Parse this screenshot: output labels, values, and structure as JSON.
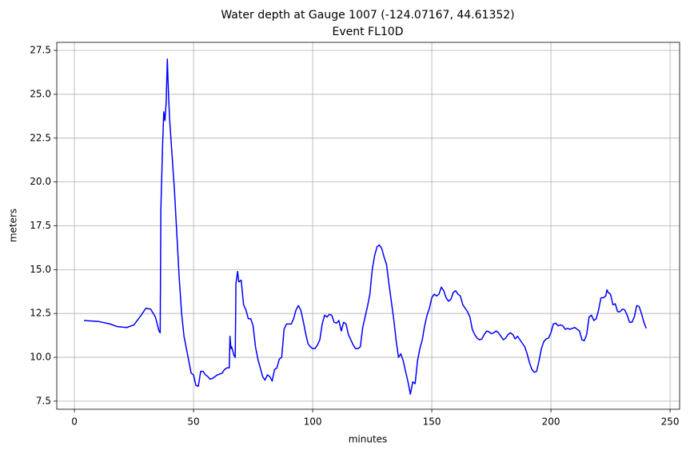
{
  "chart_data": {
    "type": "line",
    "title": "Water depth at Gauge 1007 (-124.07167, 44.61352)",
    "subtitle": "Event FL10D",
    "x_label": "minutes",
    "y_label": "meters",
    "color": "#0000ff",
    "grid": true,
    "xlim": [
      -7.4,
      254
    ],
    "ylim": [
      7.04,
      27.96
    ],
    "xticks": [
      0,
      50,
      100,
      150,
      200,
      250
    ],
    "yticks": [
      7.5,
      {
        "value": 10,
        "label": "10.0"
      },
      12.5,
      {
        "value": 15,
        "label": "15.0"
      },
      17.5,
      {
        "value": 20,
        "label": "20.0"
      },
      22.5,
      {
        "value": 25,
        "label": "25.0"
      },
      27.5
    ],
    "x": [
      4,
      10,
      15,
      18,
      22,
      25,
      28,
      30,
      32,
      34,
      35.5,
      36,
      36.3,
      37,
      37.5,
      38,
      38.5,
      39,
      39.5,
      40,
      41,
      42,
      43,
      44,
      45,
      46,
      47,
      48,
      49,
      50,
      51,
      52,
      53,
      54,
      55,
      56,
      57,
      58,
      60,
      62,
      63,
      64,
      65,
      65.3,
      65.7,
      66,
      67,
      67.5,
      67.8,
      68.5,
      69,
      70,
      71,
      72,
      73,
      74,
      75,
      76,
      77,
      78,
      79,
      80,
      81,
      82,
      83,
      84,
      85,
      86,
      87,
      88,
      89,
      90,
      91,
      92,
      93,
      94,
      95,
      96,
      97,
      98,
      99,
      100,
      101,
      102,
      103,
      104,
      105,
      106,
      107,
      108,
      109,
      110,
      111,
      112,
      113,
      114,
      115,
      116,
      117,
      118,
      119,
      120,
      121,
      122,
      123,
      124,
      125,
      126,
      127,
      128,
      129,
      130,
      131,
      132,
      133,
      134,
      135,
      136,
      137,
      138,
      139,
      140,
      141,
      142,
      143,
      144,
      145,
      146,
      147,
      148,
      149,
      150,
      151,
      152,
      153,
      154,
      155,
      156,
      157,
      158,
      159,
      160,
      161,
      162,
      163,
      164,
      165,
      166,
      167,
      168,
      169,
      170,
      171,
      172,
      173,
      174,
      175,
      176,
      177,
      178,
      179,
      180,
      181,
      182,
      183,
      184,
      185,
      186,
      187,
      188,
      189,
      190,
      191,
      192,
      193,
      194,
      195,
      196,
      197,
      198,
      199,
      200,
      201,
      202,
      203,
      204,
      205,
      206,
      207,
      208,
      209,
      210,
      211,
      212,
      213,
      214,
      215,
      216,
      217,
      218,
      219,
      220,
      221,
      222,
      223,
      223.5,
      224,
      225,
      226,
      227,
      228,
      229,
      230,
      231,
      232,
      233,
      234,
      235,
      236,
      237,
      238,
      239,
      240
    ],
    "values": [
      12.1,
      12.05,
      11.9,
      11.75,
      11.7,
      11.85,
      12.4,
      12.8,
      12.75,
      12.3,
      11.5,
      11.4,
      18.5,
      22,
      24,
      23.5,
      24.5,
      27,
      25,
      23.5,
      21.5,
      19.5,
      17,
      14.5,
      12.5,
      11.2,
      10.5,
      9.8,
      9.1,
      9.0,
      8.4,
      8.35,
      9.2,
      9.2,
      9.0,
      8.9,
      8.75,
      8.8,
      9.0,
      9.1,
      9.3,
      9.4,
      9.4,
      11.2,
      10.5,
      10.6,
      10.1,
      10.0,
      14.2,
      14.9,
      14.3,
      14.4,
      13.0,
      12.7,
      12.2,
      12.2,
      11.8,
      10.6,
      9.9,
      9.4,
      8.9,
      8.7,
      9.0,
      8.9,
      8.65,
      9.3,
      9.4,
      9.9,
      10.0,
      11.6,
      11.9,
      11.9,
      11.9,
      12.2,
      12.7,
      12.95,
      12.7,
      12.1,
      11.4,
      10.8,
      10.6,
      10.5,
      10.5,
      10.7,
      11.0,
      11.9,
      12.4,
      12.3,
      12.45,
      12.4,
      12.0,
      11.95,
      12.1,
      11.5,
      12.0,
      11.9,
      11.3,
      11.0,
      10.7,
      10.5,
      10.5,
      10.6,
      11.7,
      12.3,
      12.9,
      13.6,
      15.0,
      15.8,
      16.3,
      16.4,
      16.2,
      15.7,
      15.3,
      14.2,
      13.2,
      12.2,
      11.0,
      10.0,
      10.2,
      9.8,
      9.2,
      8.6,
      7.9,
      8.6,
      8.5,
      9.8,
      10.5,
      11.0,
      11.8,
      12.4,
      12.8,
      13.4,
      13.6,
      13.5,
      13.6,
      14.0,
      13.8,
      13.4,
      13.2,
      13.3,
      13.7,
      13.8,
      13.6,
      13.5,
      13.0,
      12.8,
      12.6,
      12.3,
      11.6,
      11.3,
      11.1,
      11.0,
      11.05,
      11.3,
      11.5,
      11.45,
      11.35,
      11.4,
      11.5,
      11.4,
      11.2,
      11.0,
      11.1,
      11.3,
      11.4,
      11.3,
      11.05,
      11.2,
      11.0,
      10.8,
      10.6,
      10.2,
      9.7,
      9.3,
      9.15,
      9.2,
      9.8,
      10.5,
      10.9,
      11.05,
      11.1,
      11.4,
      11.9,
      11.95,
      11.8,
      11.85,
      11.8,
      11.6,
      11.65,
      11.6,
      11.65,
      11.7,
      11.6,
      11.5,
      11.0,
      10.95,
      11.3,
      12.3,
      12.4,
      12.1,
      12.2,
      12.7,
      13.4,
      13.4,
      13.5,
      13.85,
      13.7,
      13.6,
      13.0,
      13.05,
      12.6,
      12.6,
      12.75,
      12.7,
      12.4,
      12.0,
      12.0,
      12.3,
      12.95,
      12.9,
      12.5,
      12.0,
      11.65
    ]
  }
}
